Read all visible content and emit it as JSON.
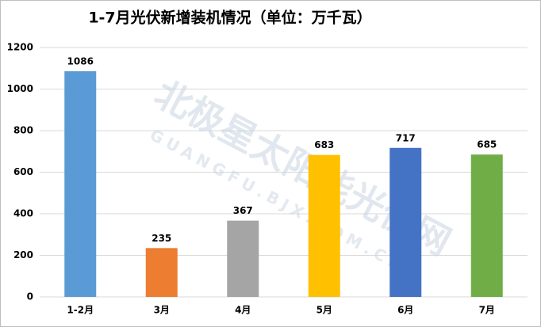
{
  "chart_data": {
    "type": "bar",
    "title": "1-7月光伏新增装机情况（单位：万千瓦）",
    "categories": [
      "1-2月",
      "3月",
      "4月",
      "5月",
      "6月",
      "7月"
    ],
    "values": [
      1086,
      235,
      367,
      683,
      717,
      685
    ],
    "colors": [
      "#5b9bd5",
      "#ed7d31",
      "#a5a5a5",
      "#ffc000",
      "#4472c4",
      "#70ad47"
    ],
    "ylim": [
      0,
      1200
    ],
    "yticks": [
      0,
      200,
      400,
      600,
      800,
      1000,
      1200
    ],
    "grid": true,
    "watermark": "北极星太阳能光伏网",
    "watermark_sub": "GUANGFU.BJX.COM.CN"
  }
}
